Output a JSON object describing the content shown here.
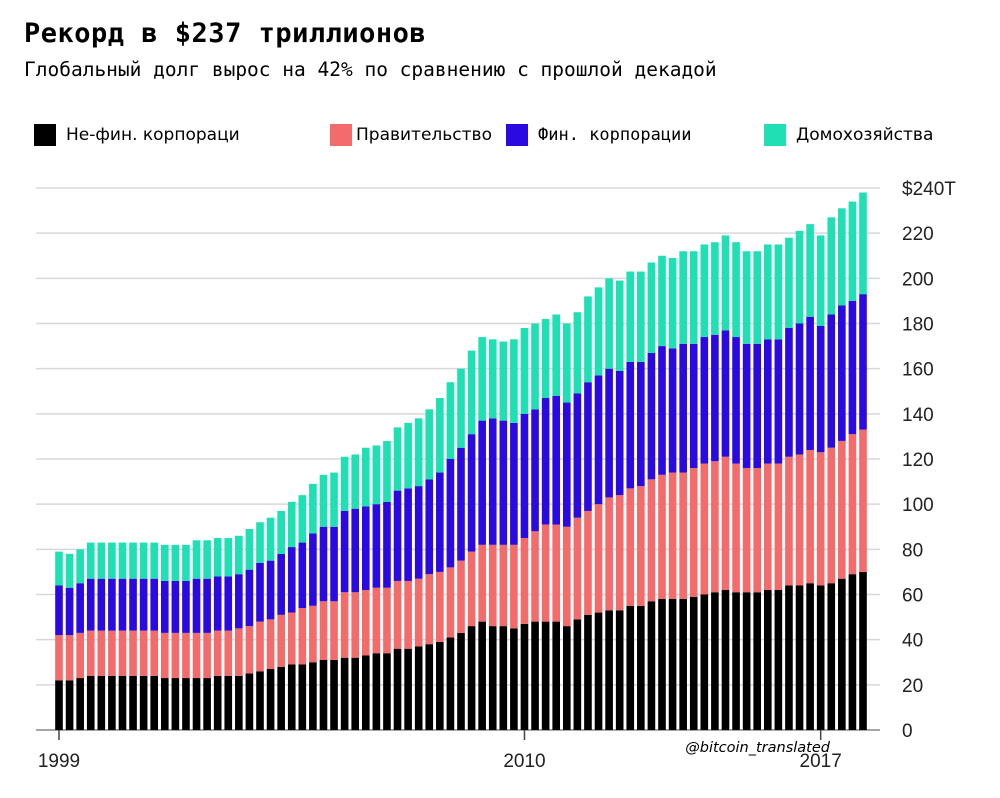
{
  "title": "Рекорд в $237 триллионов",
  "subtitle": "Глобальный долг вырос на 42% по сравнению с прошлой декадой",
  "watermark": "@bitcoin_translated",
  "colors": {
    "nonfin": "#000000",
    "gov": "#f46b6b",
    "fin": "#2a0ae0",
    "households": "#1ee0b4",
    "grid": "#d8d8d8"
  },
  "legend": [
    {
      "label": "Не-фин. корпораци",
      "color": "#000000"
    },
    {
      "label": "Правительство",
      "color": "#f46b6b"
    },
    {
      "label": "Фин. корпорации",
      "color": "#2a0ae0"
    },
    {
      "label": "Домохозяйства",
      "color": "#1ee0b4"
    }
  ],
  "chart_data": {
    "type": "bar",
    "stacked": true,
    "title": "Рекорд в $237 триллионов",
    "subtitle": "Глобальный долг вырос на 42% по сравнению с прошлой декадой",
    "xlabel": "",
    "ylabel": "",
    "ylim": [
      0,
      240
    ],
    "y_ticks": [
      0,
      20,
      40,
      60,
      80,
      100,
      120,
      140,
      160,
      180,
      200,
      220,
      240
    ],
    "y_tick_labels": [
      "0",
      "20",
      "40",
      "60",
      "80",
      "100",
      "120",
      "140",
      "160",
      "180",
      "200",
      "220",
      "$240T"
    ],
    "x_tick_labels": [
      "1999",
      "2010",
      "2017"
    ],
    "x_tick_indices": [
      0,
      44,
      72
    ],
    "grid": true,
    "series": [
      {
        "name": "Не-фин. корпораци",
        "values": [
          22,
          22,
          23,
          24,
          24,
          24,
          24,
          24,
          24,
          24,
          23,
          23,
          23,
          23,
          23,
          24,
          24,
          24,
          25,
          26,
          27,
          28,
          29,
          29,
          30,
          31,
          31,
          32,
          32,
          33,
          34,
          34,
          36,
          36,
          37,
          38,
          39,
          41,
          43,
          46,
          48,
          46,
          46,
          45,
          47,
          48,
          48,
          48,
          46,
          49,
          51,
          52,
          53,
          53,
          55,
          55,
          57,
          58,
          58,
          58,
          59,
          60,
          61,
          62,
          61,
          61,
          61,
          62,
          62,
          64,
          64,
          65,
          64,
          65,
          67,
          69,
          70
        ]
      },
      {
        "name": "Правительство",
        "values": [
          20,
          20,
          20,
          20,
          20,
          20,
          20,
          20,
          20,
          20,
          20,
          20,
          20,
          20,
          20,
          20,
          20,
          21,
          21,
          22,
          22,
          23,
          23,
          25,
          25,
          26,
          26,
          29,
          29,
          29,
          29,
          29,
          30,
          30,
          30,
          31,
          31,
          31,
          32,
          33,
          34,
          36,
          36,
          37,
          38,
          40,
          43,
          43,
          44,
          45,
          46,
          48,
          50,
          51,
          52,
          53,
          54,
          55,
          56,
          56,
          57,
          58,
          58,
          59,
          57,
          55,
          55,
          56,
          56,
          57,
          58,
          59,
          59,
          60,
          61,
          62,
          63
        ]
      },
      {
        "name": "Фин. корпорации",
        "values": [
          22,
          21,
          22,
          23,
          23,
          23,
          23,
          23,
          23,
          23,
          23,
          23,
          23,
          24,
          24,
          24,
          24,
          24,
          25,
          26,
          26,
          27,
          29,
          29,
          32,
          33,
          33,
          36,
          37,
          37,
          37,
          38,
          40,
          41,
          41,
          42,
          44,
          48,
          50,
          52,
          55,
          56,
          55,
          54,
          55,
          54,
          56,
          57,
          55,
          55,
          57,
          57,
          57,
          55,
          56,
          55,
          56,
          57,
          55,
          57,
          55,
          56,
          56,
          56,
          56,
          55,
          55,
          55,
          55,
          57,
          58,
          59,
          56,
          59,
          60,
          59,
          60
        ]
      },
      {
        "name": "Домохозяйства",
        "values": [
          15,
          15,
          15,
          16,
          16,
          16,
          16,
          16,
          16,
          16,
          16,
          16,
          16,
          17,
          17,
          17,
          17,
          17,
          18,
          18,
          19,
          19,
          20,
          21,
          22,
          23,
          24,
          24,
          24,
          26,
          26,
          27,
          28,
          29,
          30,
          31,
          33,
          34,
          35,
          37,
          37,
          35,
          35,
          37,
          38,
          38,
          35,
          36,
          35,
          36,
          38,
          39,
          40,
          40,
          40,
          40,
          40,
          40,
          40,
          41,
          41,
          41,
          41,
          42,
          42,
          41,
          41,
          42,
          42,
          40,
          41,
          41,
          40,
          43,
          43,
          44,
          45
        ]
      }
    ]
  }
}
